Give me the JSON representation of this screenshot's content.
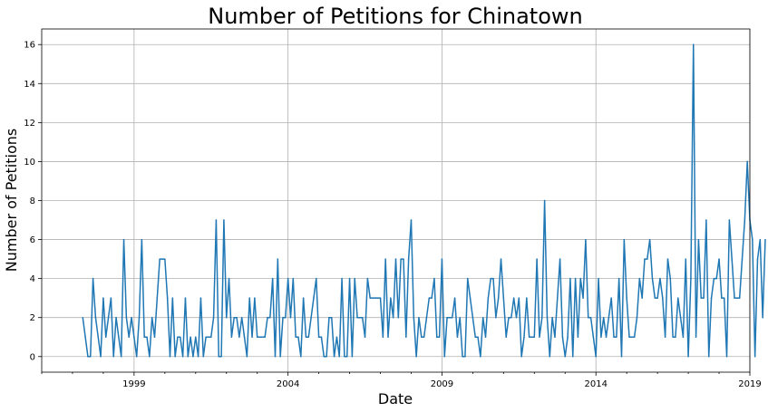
{
  "chart_data": {
    "type": "line",
    "title": "Number of Petitions for Chinatown",
    "xlabel": "Date",
    "ylabel": "Number of Petitions",
    "xlim": [
      "1996-01-01",
      "2019-01-01"
    ],
    "ylim": [
      -0.8,
      16.8
    ],
    "x_tick_labels": [
      "1999",
      "2004",
      "2009",
      "2014",
      "2019"
    ],
    "y_ticks": [
      0,
      2,
      4,
      6,
      8,
      10,
      12,
      14,
      16
    ],
    "y_tick_labels": [
      "0",
      "2",
      "4",
      "6",
      "8",
      "10",
      "12",
      "14",
      "16"
    ],
    "grid": true,
    "line_color": "#1f77b4",
    "series": [
      {
        "x_start": "1997-05",
        "frequency": "monthly",
        "values": [
          2,
          1,
          0,
          0,
          4,
          2,
          1,
          0,
          3,
          1,
          2,
          3,
          0,
          2,
          1,
          0,
          6,
          2,
          1,
          2,
          1,
          0,
          2,
          6,
          1,
          1,
          0,
          2,
          1,
          3,
          5,
          5,
          5,
          3,
          0,
          3,
          0,
          1,
          1,
          0,
          3,
          0,
          1,
          0,
          1,
          0,
          3,
          0,
          1,
          1,
          1,
          2,
          7,
          0,
          0,
          7,
          2,
          4,
          1,
          2,
          2,
          1,
          2,
          1,
          0,
          3,
          1,
          3,
          1,
          1,
          1,
          1,
          2,
          2,
          4,
          0,
          5,
          0,
          2,
          2,
          4,
          2,
          4,
          1,
          1,
          0,
          3,
          1,
          1,
          2,
          3,
          4,
          1,
          1,
          0,
          0,
          2,
          2,
          0,
          1,
          0,
          4,
          0,
          0,
          4,
          0,
          4,
          2,
          2,
          2,
          1,
          4,
          3,
          3,
          3,
          3,
          3,
          1,
          5,
          1,
          3,
          2,
          5,
          2,
          5,
          5,
          1,
          5,
          7,
          2,
          0,
          2,
          1,
          1,
          2,
          3,
          3,
          4,
          1,
          1,
          5,
          0,
          2,
          2,
          2,
          3,
          1,
          2,
          0,
          0,
          4,
          3,
          2,
          1,
          1,
          0,
          2,
          1,
          3,
          4,
          4,
          2,
          3,
          5,
          3,
          1,
          2,
          2,
          3,
          2,
          3,
          0,
          1,
          3,
          1,
          1,
          1,
          5,
          1,
          2,
          8,
          2,
          0,
          2,
          1,
          3,
          5,
          1,
          0,
          1,
          4,
          0,
          4,
          1,
          4,
          3,
          6,
          2,
          2,
          1,
          0,
          4,
          1,
          2,
          1,
          2,
          3,
          1,
          1,
          4,
          0,
          6,
          3,
          1,
          1,
          1,
          2,
          4,
          3,
          5,
          5,
          6,
          4,
          3,
          3,
          4,
          3,
          1,
          5,
          4,
          1,
          1,
          3,
          2,
          1,
          5,
          0,
          4,
          16,
          1,
          6,
          3,
          3,
          7,
          0,
          3,
          4,
          4,
          5,
          3,
          3,
          0,
          7,
          5,
          3,
          3,
          3,
          5,
          7,
          10,
          7,
          6,
          0,
          5,
          6,
          2,
          6
        ]
      }
    ]
  }
}
